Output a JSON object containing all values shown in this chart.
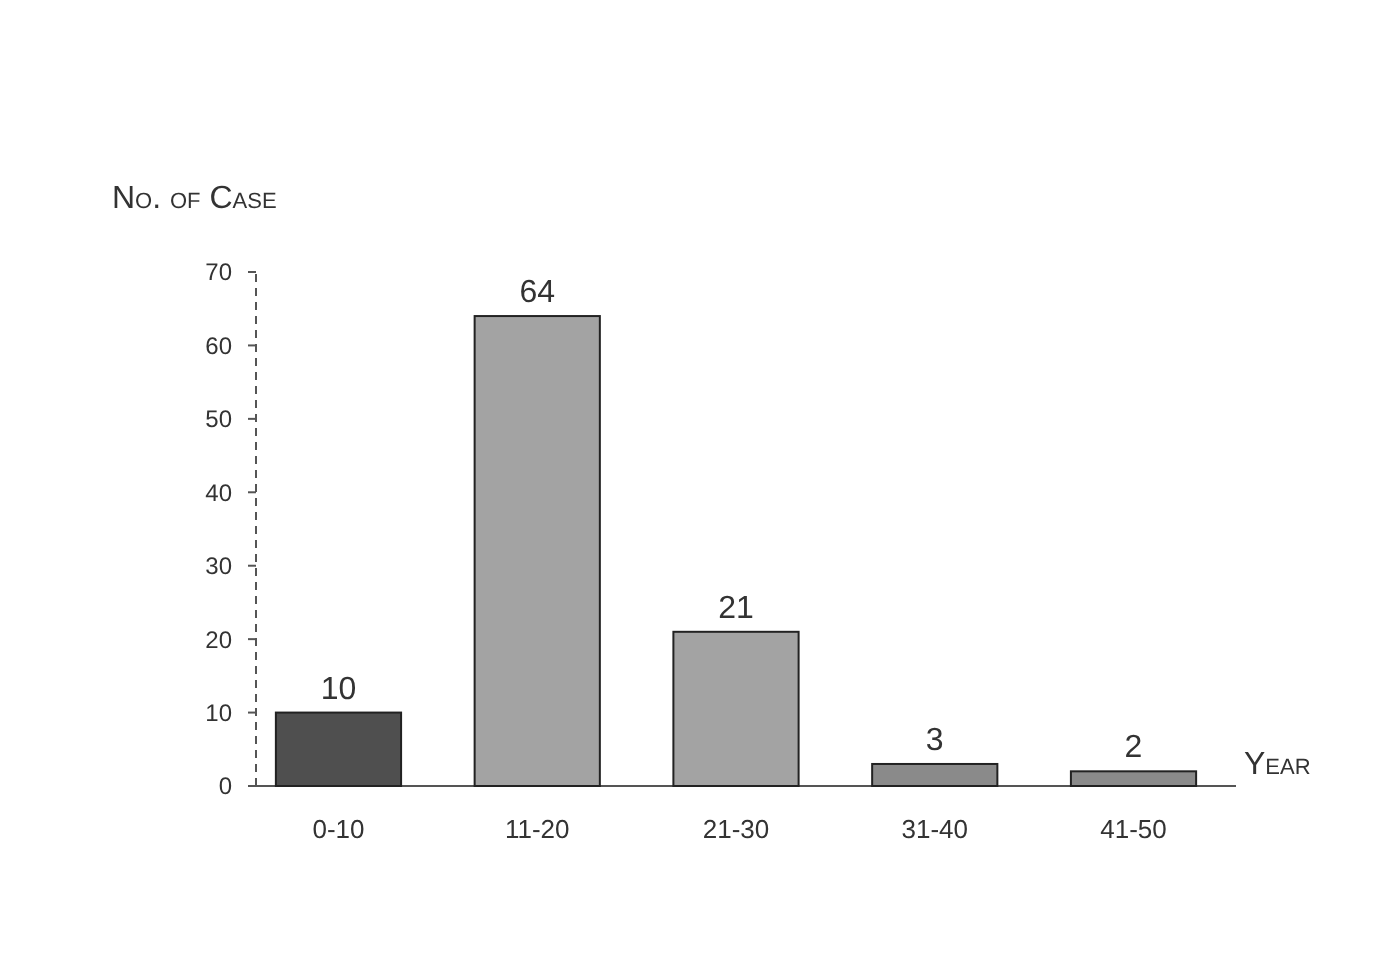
{
  "chart_data": {
    "type": "bar",
    "ylabel": "No. of Case",
    "xlabel": "Year",
    "categories": [
      "0-10",
      "11-20",
      "21-30",
      "31-40",
      "41-50"
    ],
    "values": [
      10,
      64,
      21,
      3,
      2
    ],
    "colors": [
      "#4f4f4f",
      "#a3a3a3",
      "#a3a3a3",
      "#8a8a8a",
      "#8a8a8a"
    ],
    "ylim": [
      0,
      70
    ],
    "yticks": [
      0,
      10,
      20,
      30,
      40,
      50,
      60,
      70
    ],
    "data_labels": true,
    "grid": false
  }
}
